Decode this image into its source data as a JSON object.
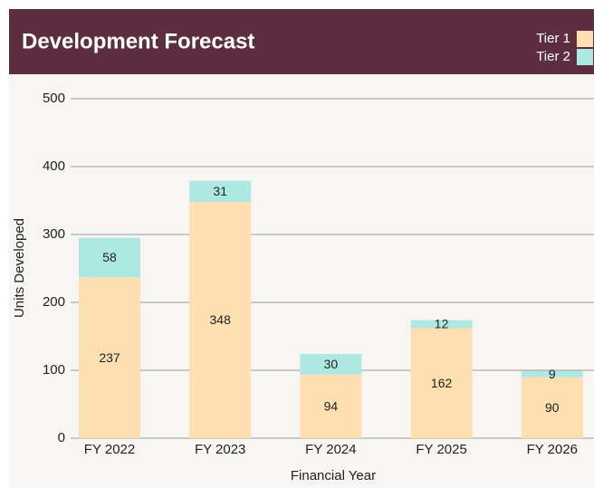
{
  "chart_data": {
    "type": "stacked_bar",
    "title": "Development Forecast",
    "x_label": "Financial Year",
    "y_label": "Units Developed",
    "categories": [
      "FY 2022",
      "FY 2023",
      "FY 2024",
      "FY 2025",
      "FY 2026"
    ],
    "series": [
      {
        "name": "Tier 1",
        "color": "#fddfb2",
        "values": [
          237,
          348,
          94,
          162,
          90
        ]
      },
      {
        "name": "Tier 2",
        "color": "#aee8e3",
        "values": [
          58,
          31,
          30,
          12,
          9
        ]
      }
    ],
    "ylim": [
      0,
      500
    ],
    "yticks": [
      0,
      100,
      200,
      300,
      400,
      500
    ],
    "grid": true,
    "legend": "top-right"
  }
}
